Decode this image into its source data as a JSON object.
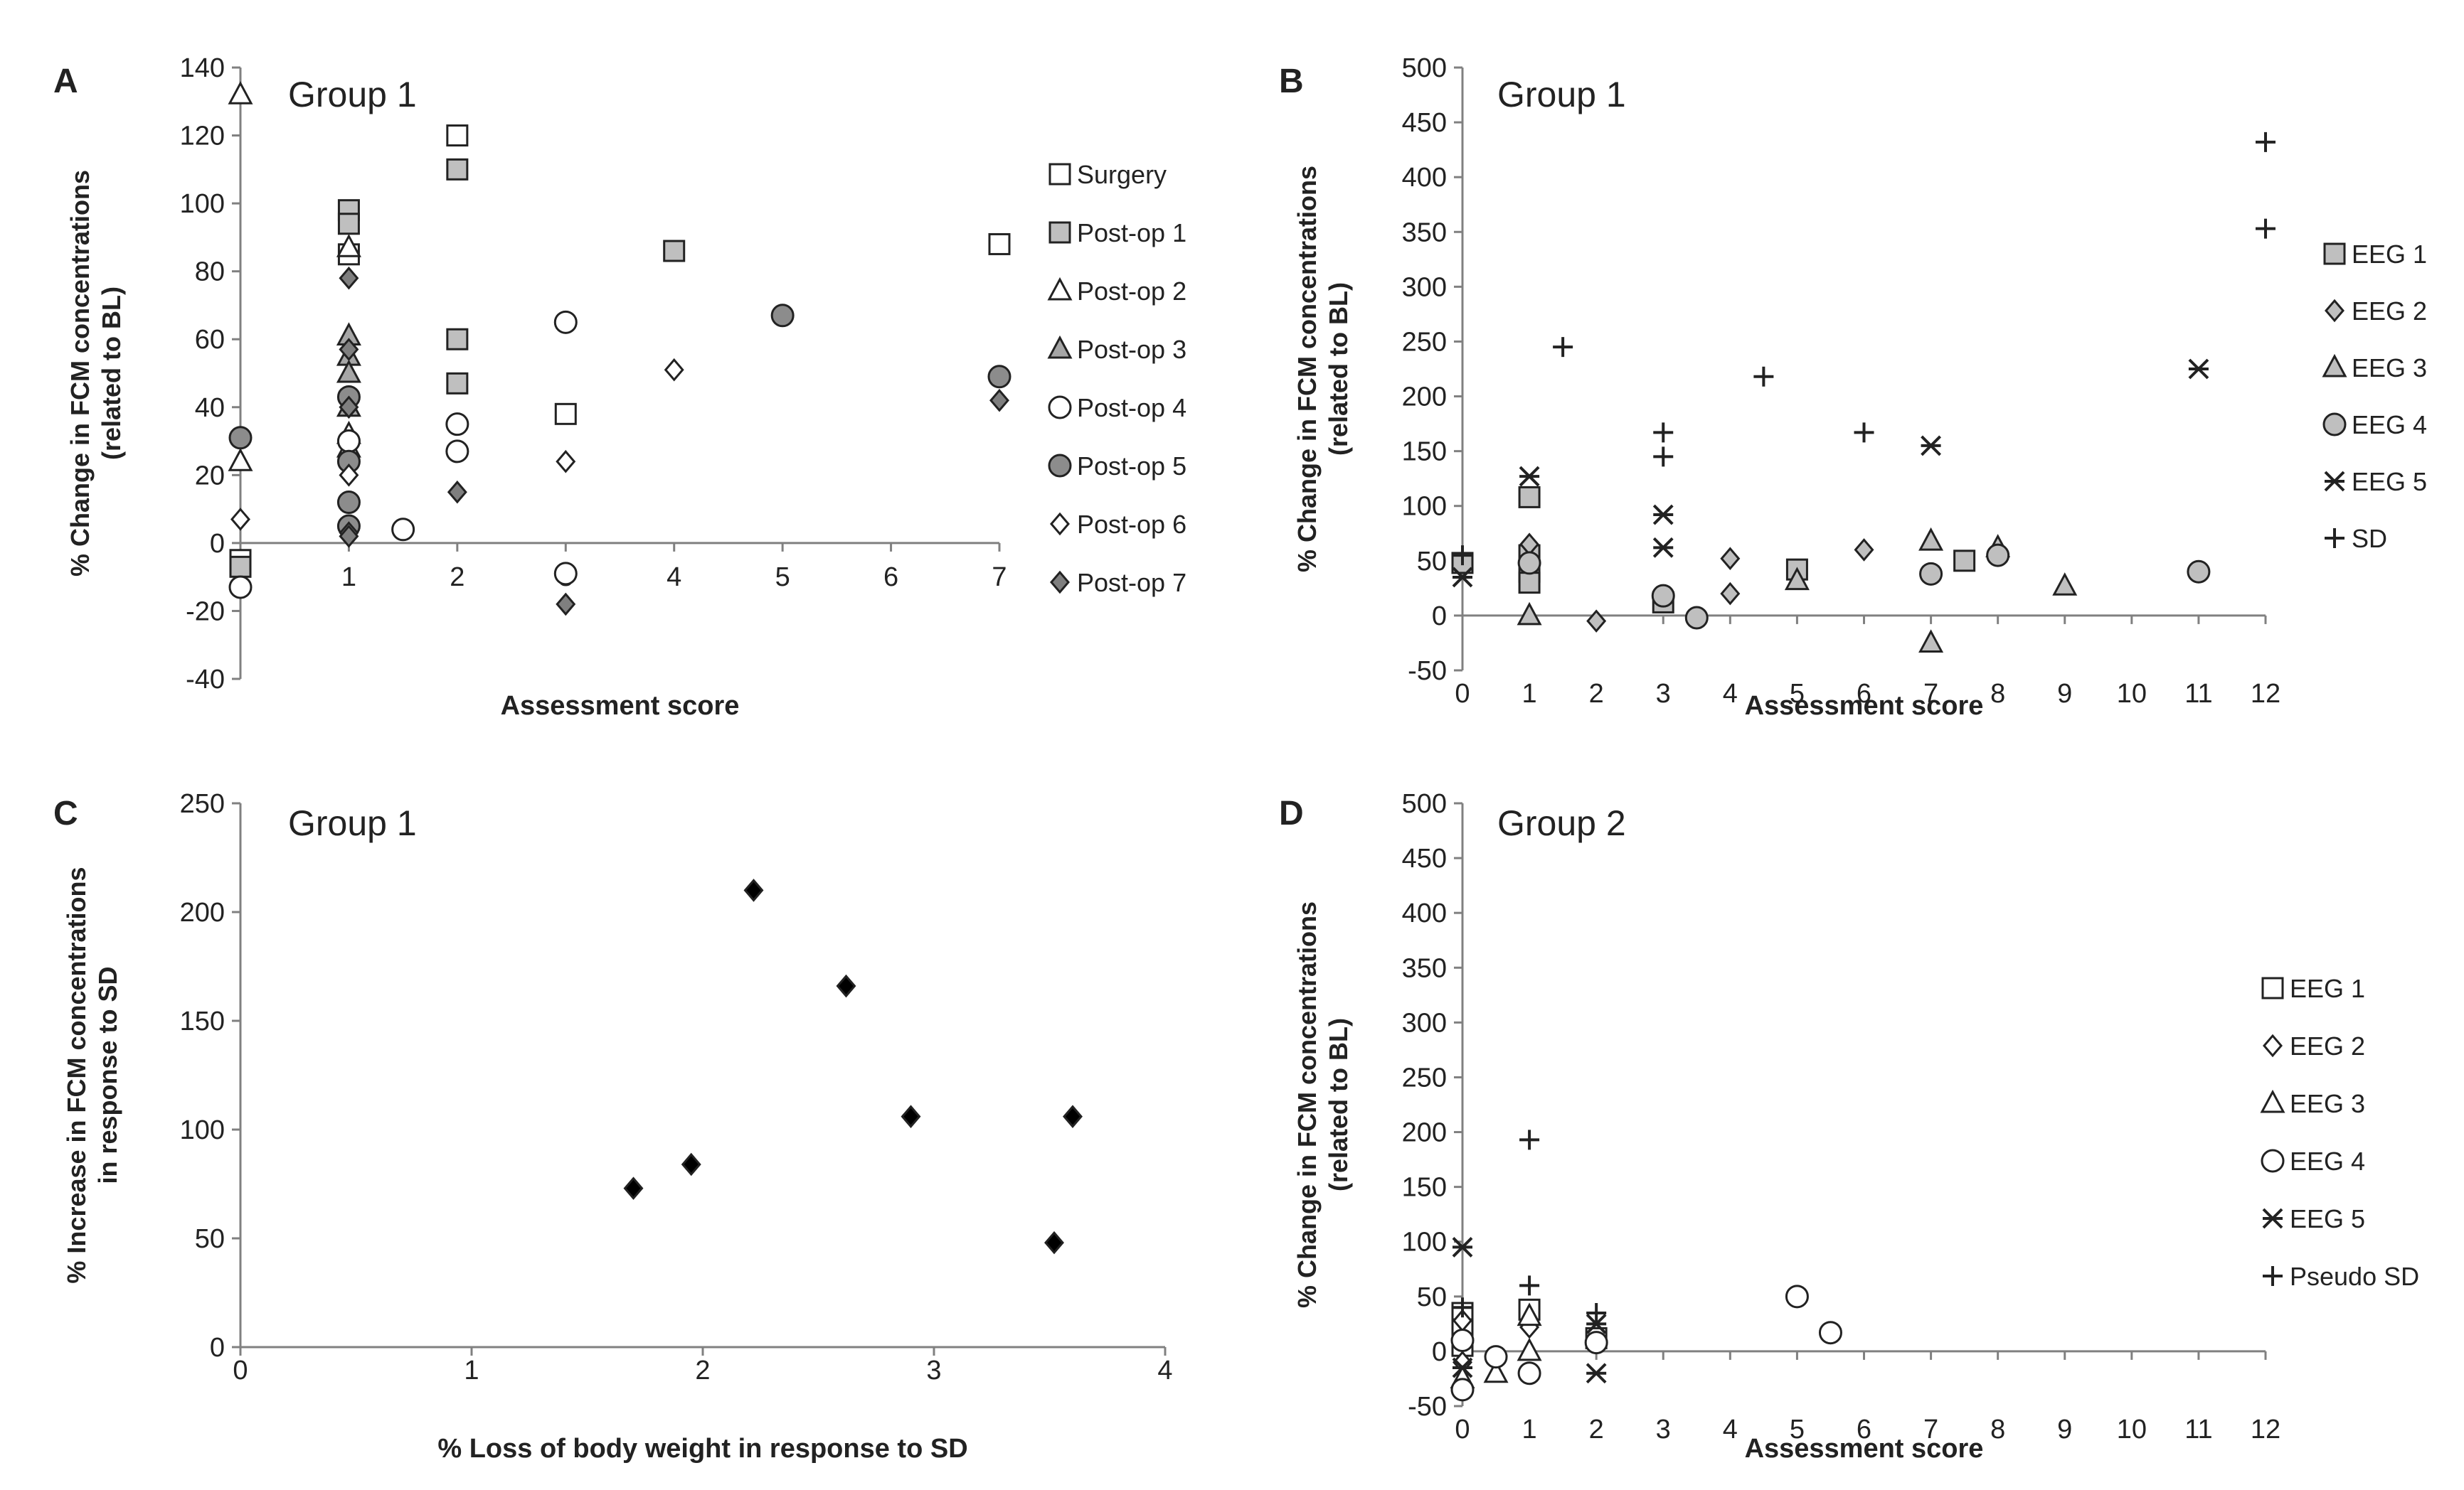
{
  "figure_labels": [
    "A",
    "B",
    "C",
    "D"
  ],
  "chart_data": [
    {
      "panel": "A",
      "type": "scatter",
      "group_label": "Group 1",
      "xlabel": "Assessment score",
      "ylabel": [
        "% Change in FCM concentrations",
        "(related to BL)"
      ],
      "x_ticks": [
        "1",
        "2",
        "3",
        "4",
        "5",
        "6",
        "7"
      ],
      "y_ticks": [
        "-40",
        "-20",
        "0",
        "20",
        "40",
        "60",
        "80",
        "100",
        "120",
        "140"
      ],
      "xlim": [
        0,
        7
      ],
      "ylim": [
        -40,
        140
      ],
      "legend": "right",
      "series": [
        {
          "name": "Surgery",
          "marker": "square",
          "fill": "#ffffff",
          "points": [
            [
              0,
              -5
            ],
            [
              1,
              85
            ],
            [
              2,
              120
            ],
            [
              3,
              38
            ],
            [
              7,
              88
            ]
          ]
        },
        {
          "name": "Post-op 1",
          "marker": "square",
          "fill": "#bfbfbf",
          "points": [
            [
              0,
              -7
            ],
            [
              1,
              98
            ],
            [
              1,
              94
            ],
            [
              2,
              110
            ],
            [
              2,
              60
            ],
            [
              2,
              47
            ],
            [
              4,
              86
            ]
          ]
        },
        {
          "name": "Post-op 2",
          "marker": "triangle",
          "fill": "#ffffff",
          "points": [
            [
              0,
              132
            ],
            [
              0,
              24
            ],
            [
              1,
              87
            ],
            [
              1,
              32
            ],
            [
              1,
              28
            ]
          ]
        },
        {
          "name": "Post-op 3",
          "marker": "triangle",
          "fill": "#a6a6a6",
          "points": [
            [
              1,
              61
            ],
            [
              1,
              55
            ],
            [
              1,
              50
            ],
            [
              1,
              40
            ]
          ]
        },
        {
          "name": "Post-op 4",
          "marker": "circle",
          "fill": "#ffffff",
          "points": [
            [
              0,
              -13
            ],
            [
              1,
              30
            ],
            [
              1.5,
              4
            ],
            [
              2,
              35
            ],
            [
              2,
              27
            ],
            [
              3,
              65
            ],
            [
              3,
              -9
            ]
          ]
        },
        {
          "name": "Post-op 5",
          "marker": "circle",
          "fill": "#8c8c8c",
          "points": [
            [
              0,
              31
            ],
            [
              1,
              43
            ],
            [
              1,
              24
            ],
            [
              1,
              12
            ],
            [
              1,
              5
            ],
            [
              5,
              67
            ],
            [
              7,
              49
            ]
          ]
        },
        {
          "name": "Post-op 6",
          "marker": "diamond",
          "fill": "#ffffff",
          "points": [
            [
              0,
              7
            ],
            [
              1,
              20
            ],
            [
              1,
              3
            ],
            [
              3,
              24
            ],
            [
              4,
              51
            ]
          ]
        },
        {
          "name": "Post-op 7",
          "marker": "diamond",
          "fill": "#7f7f7f",
          "points": [
            [
              1,
              78
            ],
            [
              1,
              57
            ],
            [
              1,
              40
            ],
            [
              1,
              2
            ],
            [
              2,
              15
            ],
            [
              3,
              -18
            ],
            [
              7,
              42
            ]
          ]
        }
      ]
    },
    {
      "panel": "B",
      "type": "scatter",
      "group_label": "Group 1",
      "xlabel": "Assessment score",
      "ylabel": [
        "% Change in FCM concentrations",
        "(related to BL)"
      ],
      "x_ticks": [
        "0",
        "1",
        "2",
        "3",
        "4",
        "5",
        "6",
        "7",
        "8",
        "9",
        "10",
        "11",
        "12"
      ],
      "y_ticks": [
        "-50",
        "0",
        "50",
        "100",
        "150",
        "200",
        "250",
        "300",
        "350",
        "400",
        "450",
        "500"
      ],
      "xlim": [
        0,
        12
      ],
      "ylim": [
        -50,
        500
      ],
      "legend": "right",
      "series": [
        {
          "name": "EEG 1",
          "marker": "square",
          "fill": "#bfbfbf",
          "points": [
            [
              0,
              48
            ],
            [
              1,
              108
            ],
            [
              1,
              55
            ],
            [
              1,
              40
            ],
            [
              1,
              30
            ],
            [
              3,
              12
            ],
            [
              5,
              42
            ],
            [
              7.5,
              50
            ]
          ]
        },
        {
          "name": "EEG 2",
          "marker": "diamond",
          "fill": "#bfbfbf",
          "points": [
            [
              1,
              65
            ],
            [
              2,
              -5
            ],
            [
              4,
              52
            ],
            [
              4,
              20
            ],
            [
              6,
              60
            ]
          ]
        },
        {
          "name": "EEG 3",
          "marker": "triangle",
          "fill": "#bfbfbf",
          "points": [
            [
              1,
              0
            ],
            [
              5,
              32
            ],
            [
              7,
              68
            ],
            [
              7,
              -25
            ],
            [
              8,
              62
            ],
            [
              9,
              27
            ]
          ]
        },
        {
          "name": "EEG 4",
          "marker": "circle",
          "fill": "#bfbfbf",
          "points": [
            [
              1,
              48
            ],
            [
              3,
              18
            ],
            [
              3.5,
              -2
            ],
            [
              7,
              38
            ],
            [
              8,
              55
            ],
            [
              11,
              40
            ]
          ]
        },
        {
          "name": "EEG 5",
          "marker": "star",
          "fill": "#222222",
          "points": [
            [
              0,
              35
            ],
            [
              1,
              127
            ],
            [
              3,
              92
            ],
            [
              3,
              62
            ],
            [
              7,
              155
            ],
            [
              11,
              225
            ]
          ]
        },
        {
          "name": "SD",
          "marker": "plus",
          "fill": "#222222",
          "points": [
            [
              0,
              55
            ],
            [
              1.5,
              245
            ],
            [
              3,
              167
            ],
            [
              3,
              145
            ],
            [
              4.5,
              218
            ],
            [
              6,
              167
            ],
            [
              12,
              432
            ],
            [
              12,
              353
            ]
          ]
        }
      ]
    },
    {
      "panel": "C",
      "type": "scatter",
      "group_label": "Group 1",
      "xlabel": "% Loss of body weight in response to SD",
      "ylabel": [
        "% Increase in FCM concentrations",
        "in response to SD"
      ],
      "x_ticks": [
        "0",
        "1",
        "2",
        "3",
        "4"
      ],
      "y_ticks": [
        "0",
        "50",
        "100",
        "150",
        "200",
        "250"
      ],
      "xlim": [
        0,
        4
      ],
      "ylim": [
        0,
        250
      ],
      "series": [
        {
          "name": "",
          "marker": "diamond",
          "fill": "#000000",
          "points": [
            [
              1.7,
              73
            ],
            [
              1.95,
              84
            ],
            [
              2.22,
              210
            ],
            [
              2.62,
              166
            ],
            [
              2.9,
              106
            ],
            [
              3.52,
              48
            ],
            [
              3.6,
              106
            ]
          ]
        }
      ]
    },
    {
      "panel": "D",
      "type": "scatter",
      "group_label": "Group 2",
      "xlabel": "Assessment score",
      "ylabel": [
        "% Change in FCM concentrations",
        "(related to BL)"
      ],
      "x_ticks": [
        "0",
        "1",
        "2",
        "3",
        "4",
        "5",
        "6",
        "7",
        "8",
        "9",
        "10",
        "11",
        "12"
      ],
      "y_ticks": [
        "-50",
        "0",
        "50",
        "100",
        "150",
        "200",
        "250",
        "300",
        "350",
        "400",
        "450",
        "500"
      ],
      "xlim": [
        0,
        12
      ],
      "ylim": [
        -50,
        500
      ],
      "legend": "right",
      "series": [
        {
          "name": "EEG 1",
          "marker": "square",
          "fill": "#ffffff",
          "points": [
            [
              0,
              35
            ],
            [
              0,
              20
            ],
            [
              0,
              5
            ],
            [
              1,
              38
            ],
            [
              2,
              12
            ]
          ]
        },
        {
          "name": "EEG 2",
          "marker": "diamond",
          "fill": "#ffffff",
          "points": [
            [
              0,
              28
            ],
            [
              0,
              -10
            ],
            [
              1,
              22
            ]
          ]
        },
        {
          "name": "EEG 3",
          "marker": "triangle",
          "fill": "#ffffff",
          "points": [
            [
              0,
              -25
            ],
            [
              0.5,
              -20
            ],
            [
              1,
              0
            ],
            [
              1,
              32
            ]
          ]
        },
        {
          "name": "EEG 4",
          "marker": "circle",
          "fill": "#ffffff",
          "points": [
            [
              0,
              -35
            ],
            [
              0,
              10
            ],
            [
              0.5,
              -5
            ],
            [
              1,
              -20
            ],
            [
              2,
              8
            ],
            [
              5,
              50
            ],
            [
              5.5,
              17
            ]
          ]
        },
        {
          "name": "EEG 5",
          "marker": "star",
          "fill": "#222222",
          "points": [
            [
              0,
              95
            ],
            [
              0,
              -15
            ],
            [
              2,
              25
            ],
            [
              2,
              -20
            ]
          ]
        },
        {
          "name": "Pseudo SD",
          "marker": "plus",
          "fill": "#222222",
          "points": [
            [
              0,
              40
            ],
            [
              1,
              193
            ],
            [
              1,
              60
            ],
            [
              2,
              35
            ]
          ]
        }
      ]
    }
  ]
}
